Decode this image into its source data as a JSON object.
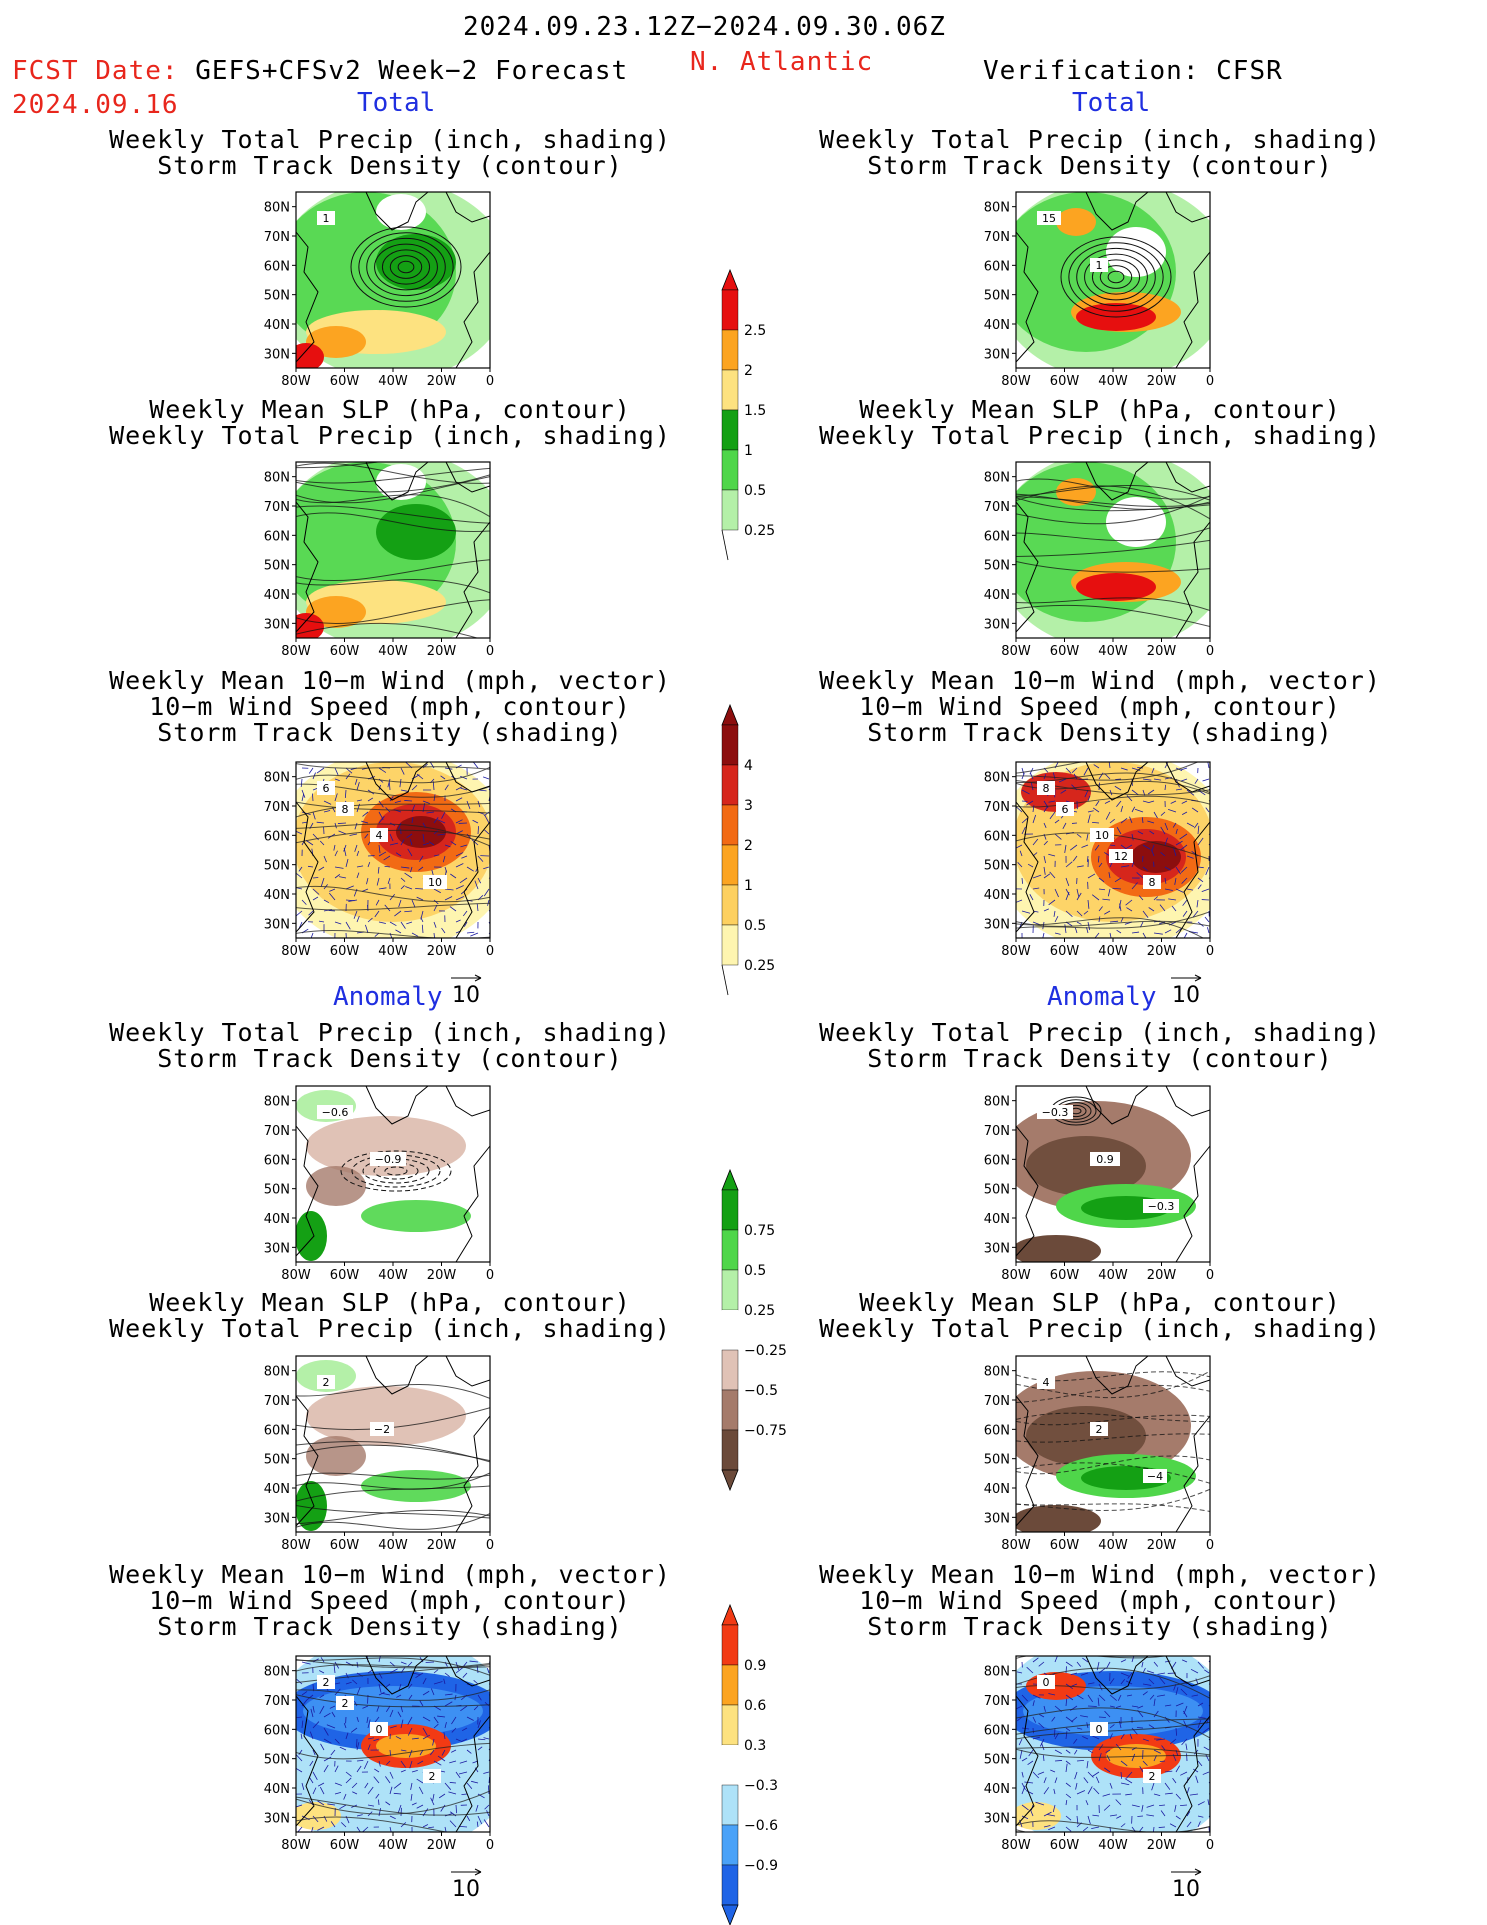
{
  "header": {
    "period": "2024.09.23.12Z−2024.09.30.06Z",
    "region": "N. Atlantic",
    "fcst_date_label": "FCST Date:",
    "fcst_model": "GEFS+CFSv2 Week−2 Forecast",
    "fcst_date": "2024.09.16",
    "verification": "Verification: CFSR"
  },
  "sections": {
    "total": "Total",
    "anomaly": "Anomaly"
  },
  "panel_titles": {
    "precip_track": [
      "Weekly Total Precip (inch, shading)",
      "Storm Track Density (contour)"
    ],
    "slp_precip": [
      "Weekly Mean SLP (hPa, contour)",
      "Weekly Total Precip (inch, shading)"
    ],
    "wind_track": [
      "Weekly Mean 10−m Wind (mph, vector)",
      "10−m Wind Speed (mph, contour)",
      "Storm Track Density (shading)"
    ]
  },
  "vector_ref": "10",
  "colors": {
    "header_red": "#e8261c",
    "section_blue": "#1f2fe0",
    "precip_total": [
      "#b4f0a8",
      "#4fd64a",
      "#14a014",
      "#fde280",
      "#fca421",
      "#e60f0f"
    ],
    "track_total": [
      "#fef5b0",
      "#fdd060",
      "#fca421",
      "#f26a14",
      "#d6261c",
      "#8c0e0e"
    ],
    "precip_anom": [
      "#6b4a3a",
      "#a57b6b",
      "#e0c2b6",
      "#ffffff",
      "#b4f0a8",
      "#4fd64a",
      "#14a014"
    ],
    "track_anom": [
      "#1f64e6",
      "#4aa2f8",
      "#aee2f8",
      "#ffffff",
      "#fde280",
      "#fca421",
      "#f23a14"
    ]
  },
  "chart_data": [
    {
      "type": "heatmap",
      "name": "precip-track-total",
      "xlabel": "",
      "ylabel": "",
      "x_ticks": [
        "80W",
        "60W",
        "40W",
        "20W",
        "0"
      ],
      "y_ticks": [
        "80N",
        "70N",
        "60N",
        "50N",
        "40N",
        "30N"
      ],
      "xlim": [
        -80,
        0
      ],
      "ylim": [
        25,
        85
      ],
      "colorbar": {
        "levels": [
          "2.5",
          "2",
          "1.5",
          "1",
          "0.5",
          "0.25"
        ]
      },
      "forecast_labels": [
        "1"
      ],
      "verification_labels": [
        "15",
        "1"
      ]
    },
    {
      "type": "heatmap",
      "name": "slp-precip-total",
      "xlabel": "",
      "ylabel": "",
      "x_ticks": [
        "80W",
        "60W",
        "40W",
        "20W",
        "0"
      ],
      "y_ticks": [
        "80N",
        "70N",
        "60N",
        "50N",
        "40N",
        "30N"
      ],
      "xlim": [
        -80,
        0
      ],
      "ylim": [
        25,
        85
      ],
      "colorbar": {
        "levels": [
          "2.5",
          "2",
          "1.5",
          "1",
          "0.5",
          "0.25"
        ]
      }
    },
    {
      "type": "heatmap",
      "name": "wind-track-total",
      "xlabel": "",
      "ylabel": "",
      "x_ticks": [
        "80W",
        "60W",
        "40W",
        "20W",
        "0"
      ],
      "y_ticks": [
        "80N",
        "70N",
        "60N",
        "50N",
        "40N",
        "30N"
      ],
      "xlim": [
        -80,
        0
      ],
      "ylim": [
        25,
        85
      ],
      "colorbar": {
        "levels": [
          "4",
          "3",
          "2",
          "1",
          "0.5",
          "0.25"
        ]
      },
      "forecast_labels": [
        "6",
        "4",
        "10",
        "8"
      ],
      "verification_labels": [
        "8",
        "10",
        "8",
        "6",
        "12"
      ]
    },
    {
      "type": "heatmap",
      "name": "precip-track-anomaly",
      "xlabel": "",
      "ylabel": "",
      "x_ticks": [
        "80W",
        "60W",
        "40W",
        "20W",
        "0"
      ],
      "y_ticks": [
        "80N",
        "70N",
        "60N",
        "50N",
        "40N",
        "30N"
      ],
      "xlim": [
        -80,
        0
      ],
      "ylim": [
        25,
        85
      ],
      "colorbar": {
        "levels": [
          "0.75",
          "0.5",
          "0.25",
          "−0.25",
          "−0.5",
          "−0.75"
        ]
      },
      "forecast_labels": [
        "−0.6",
        "−0.9"
      ],
      "verification_labels": [
        "−0.3",
        "0.9",
        "−0.3"
      ]
    },
    {
      "type": "heatmap",
      "name": "slp-precip-anomaly",
      "xlabel": "",
      "ylabel": "",
      "x_ticks": [
        "80W",
        "60W",
        "40W",
        "20W",
        "0"
      ],
      "y_ticks": [
        "80N",
        "70N",
        "60N",
        "50N",
        "40N",
        "30N"
      ],
      "xlim": [
        -80,
        0
      ],
      "ylim": [
        25,
        85
      ],
      "colorbar": {
        "levels": [
          "0.75",
          "0.5",
          "0.25",
          "−0.25",
          "−0.5",
          "−0.75"
        ]
      },
      "forecast_labels": [
        "2",
        "−2"
      ],
      "verification_labels": [
        "4",
        "2",
        "−4"
      ]
    },
    {
      "type": "heatmap",
      "name": "wind-track-anomaly",
      "xlabel": "",
      "ylabel": "",
      "x_ticks": [
        "80W",
        "60W",
        "40W",
        "20W",
        "0"
      ],
      "y_ticks": [
        "80N",
        "70N",
        "60N",
        "50N",
        "40N",
        "30N"
      ],
      "xlim": [
        -80,
        0
      ],
      "ylim": [
        25,
        85
      ],
      "colorbar": {
        "levels": [
          "0.9",
          "0.6",
          "0.3",
          "−0.3",
          "−0.6",
          "−0.9"
        ]
      },
      "forecast_labels": [
        "2",
        "0",
        "2",
        "2"
      ],
      "verification_labels": [
        "0",
        "0",
        "2"
      ]
    }
  ]
}
